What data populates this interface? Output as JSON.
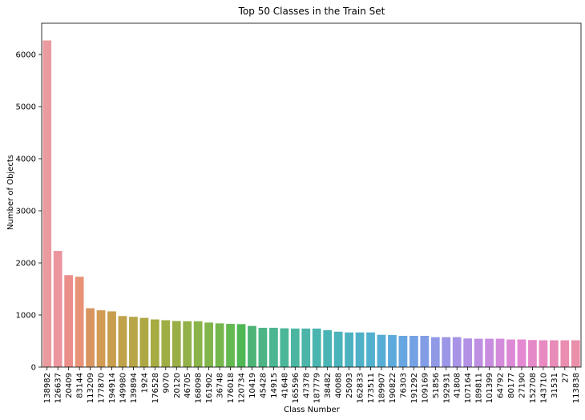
{
  "chart_data": {
    "type": "bar",
    "title": "Top 50 Classes in the Train Set",
    "xlabel": "Class Number",
    "ylabel": "Number of Objects",
    "ylim": [
      0,
      6600
    ],
    "yticks": [
      0,
      1000,
      2000,
      3000,
      4000,
      5000,
      6000
    ],
    "grid": false,
    "legend": "none",
    "categories": [
      "138982",
      "126637",
      "20409",
      "83144",
      "113209",
      "177870",
      "194914",
      "149980",
      "139894",
      "1924",
      "176528",
      "9070",
      "20120",
      "46705",
      "168098",
      "161902",
      "36748",
      "176018",
      "120734",
      "10419",
      "45428",
      "14915",
      "41648",
      "165596",
      "47378",
      "187779",
      "38482",
      "40088",
      "25093",
      "162833",
      "173511",
      "189907",
      "190822",
      "76303",
      "191292",
      "109169",
      "51856",
      "192931",
      "41808",
      "107164",
      "189811",
      "101399",
      "64792",
      "80177",
      "27190",
      "152708",
      "143710",
      "31531",
      "27",
      "113838"
    ],
    "values": [
      6270,
      2230,
      1765,
      1735,
      1130,
      1090,
      1070,
      980,
      965,
      945,
      915,
      900,
      885,
      880,
      880,
      855,
      840,
      830,
      825,
      790,
      755,
      755,
      745,
      740,
      740,
      740,
      710,
      680,
      665,
      665,
      665,
      620,
      615,
      600,
      600,
      600,
      575,
      575,
      575,
      550,
      545,
      545,
      545,
      530,
      530,
      520,
      515,
      515,
      515,
      515
    ],
    "colors": [
      "#ea9b9f",
      "#eb969e",
      "#eb8e8a",
      "#e89377",
      "#d8955f",
      "#d29b53",
      "#c79d4e",
      "#bfa24a",
      "#b7a547",
      "#aea844",
      "#a6ab42",
      "#9fae44",
      "#99ae45",
      "#92b148",
      "#8ab34a",
      "#82b44c",
      "#76b74d",
      "#63b84f",
      "#4fb755",
      "#4db377",
      "#4db485",
      "#4cb591",
      "#4bb699",
      "#4ab6a1",
      "#4ab5a8",
      "#4ab4ae",
      "#4ab4b4",
      "#4bb3ba",
      "#4cb2c0",
      "#4eb1c7",
      "#51b0ce",
      "#56add5",
      "#5caadb",
      "#66a6e1",
      "#74a1e3",
      "#829de5",
      "#8f99e6",
      "#9c96e6",
      "#a893e6",
      "#b391e4",
      "#be8fe2",
      "#c98de0",
      "#d48bdc",
      "#dd89d7",
      "#e388d1",
      "#e689c9",
      "#e88ac1",
      "#e98bb9",
      "#ea8db1",
      "#ea8fa9"
    ]
  }
}
